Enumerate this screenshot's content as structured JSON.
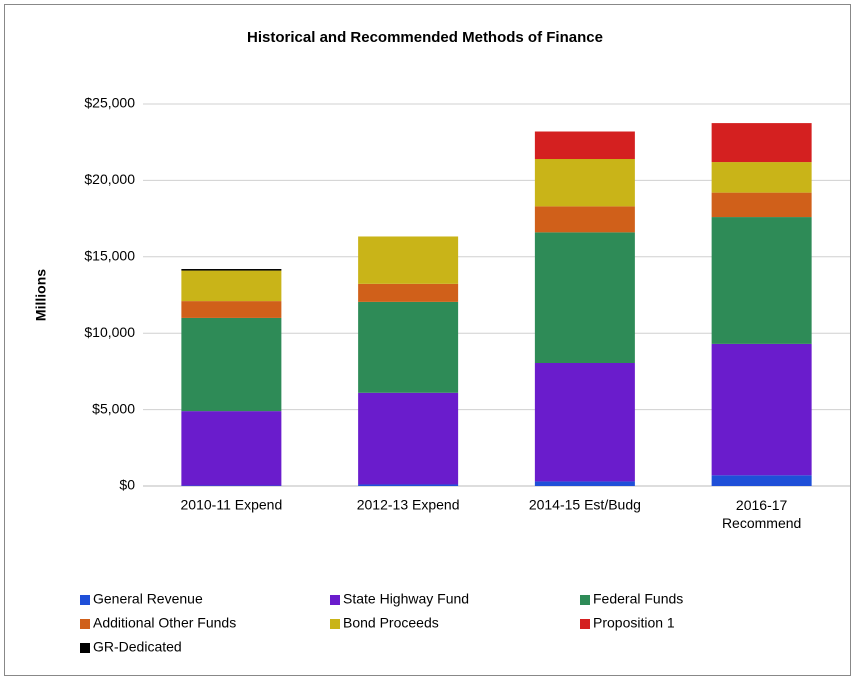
{
  "chart_data": {
    "type": "stacked_bar",
    "title": "Historical and Recommended Methods of Finance",
    "y_label": "Millions",
    "categories": [
      "2010-11 Expend",
      "2012-13 Expend",
      "2014-15 Est/Budg",
      "2016-17 Recommend"
    ],
    "series": [
      {
        "name": "General Revenue",
        "color": "#1f4fd8",
        "values": [
          30,
          100,
          300,
          700
        ]
      },
      {
        "name": "State Highway Fund",
        "color": "#6a1ccc",
        "values": [
          4870,
          6000,
          7750,
          8600
        ]
      },
      {
        "name": "Federal Funds",
        "color": "#2e8b57",
        "values": [
          6100,
          5950,
          8550,
          8300
        ]
      },
      {
        "name": "Additional Other Funds",
        "color": "#d0601a",
        "values": [
          1100,
          1180,
          1700,
          1600
        ]
      },
      {
        "name": "Bond Proceeds",
        "color": "#c9b418",
        "values": [
          2000,
          3100,
          3100,
          2000
        ]
      },
      {
        "name": "Proposition 1",
        "color": "#d42020",
        "values": [
          0,
          0,
          1800,
          2550
        ]
      },
      {
        "name": "GR-Dedicated",
        "color": "#000000",
        "values": [
          100,
          0,
          0,
          0
        ]
      }
    ],
    "ylim": [
      0,
      25000
    ],
    "yticks": [
      {
        "value": 0,
        "label": "$0"
      },
      {
        "value": 5000,
        "label": "$5,000"
      },
      {
        "value": 10000,
        "label": "$10,000"
      },
      {
        "value": 15000,
        "label": "$15,000"
      },
      {
        "value": 20000,
        "label": "$20,000"
      },
      {
        "value": 25000,
        "label": "$25,000"
      }
    ],
    "grid": true
  }
}
